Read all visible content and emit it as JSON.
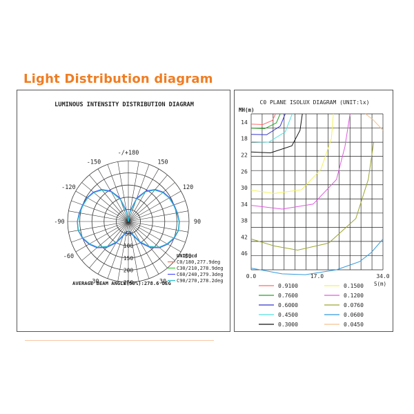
{
  "page": {
    "heading": "Light Distribution diagram",
    "accent_color": "#f07d22"
  },
  "chart_data": [
    {
      "type": "polar",
      "title": "LUMINOUS INTENSITY DISTRIBUTION DIAGRAM",
      "unit_label": "UNIT:cd",
      "angle_labels": [
        "-/+180",
        "150",
        "120",
        "90",
        "60",
        "30",
        "-30",
        "-60",
        "-90",
        "-120",
        "-150"
      ],
      "angle_label_values": [
        180,
        150,
        120,
        90,
        60,
        30,
        -30,
        -60,
        -90,
        -120,
        -150
      ],
      "radial_ticks": [
        50,
        100,
        150,
        200,
        250
      ],
      "radial_max": 250,
      "beam_angle_text": "AVERAGE BEAM ANGLE(50%):278.6 DEG",
      "series": [
        {
          "name": "C0/180,277.9deg",
          "color": "#ff6a4d",
          "angles": [
            0,
            10,
            20,
            30,
            40,
            50,
            60,
            70,
            80,
            90,
            100,
            110,
            120,
            130,
            140,
            150,
            160,
            170,
            180
          ],
          "values": [
            40,
            43,
            60,
            98,
            136,
            166,
            185,
            200,
            210,
            210,
            204,
            199,
            195,
            186,
            170,
            142,
            100,
            40,
            0
          ]
        },
        {
          "name": "C30/210,278.9deg",
          "color": "#33cc33",
          "angles": [
            0,
            10,
            20,
            30,
            40,
            50,
            60,
            70,
            80,
            90,
            100,
            110,
            120,
            130,
            140,
            150,
            160,
            170,
            180
          ],
          "values": [
            40,
            44,
            62,
            100,
            138,
            167,
            186,
            200,
            209,
            210,
            205,
            200,
            196,
            187,
            171,
            143,
            102,
            42,
            0
          ]
        },
        {
          "name": "C60/240,279.3deg",
          "color": "#4d4dff",
          "angles": [
            0,
            10,
            20,
            30,
            40,
            50,
            60,
            70,
            80,
            90,
            100,
            110,
            120,
            130,
            140,
            150,
            160,
            170,
            180
          ],
          "values": [
            40,
            45,
            64,
            102,
            140,
            168,
            187,
            201,
            210,
            210,
            205,
            200,
            196,
            188,
            172,
            145,
            104,
            44,
            0
          ]
        },
        {
          "name": "C90/270,278.2deg",
          "color": "#22bbcc",
          "angles": [
            0,
            10,
            20,
            30,
            40,
            50,
            60,
            70,
            80,
            90,
            100,
            110,
            120,
            130,
            140,
            150,
            160,
            170,
            180
          ],
          "values": [
            40,
            42,
            58,
            96,
            134,
            165,
            184,
            199,
            209,
            209,
            203,
            198,
            194,
            185,
            169,
            141,
            98,
            38,
            0
          ]
        }
      ]
    },
    {
      "type": "contour",
      "title": "C0 PLANE ISOLUX DIAGRAM (UNIT:lx)",
      "y_axis_label": "MH(m)",
      "x_axis_label": "S(m)",
      "y_ticks": [
        14,
        18,
        22,
        26,
        30,
        34,
        38,
        42,
        46
      ],
      "x_ticks": [
        "0.0",
        "17.0",
        "34.0"
      ],
      "xlim": [
        0,
        34
      ],
      "ylim": [
        12,
        50
      ],
      "legend": [
        {
          "value": "0.9100",
          "color": "#ff6a6a"
        },
        {
          "value": "0.1500",
          "color": "#f2f25a"
        },
        {
          "value": "0.7600",
          "color": "#2aa12a"
        },
        {
          "value": "0.1200",
          "color": "#e05ae0"
        },
        {
          "value": "0.6000",
          "color": "#3333cc"
        },
        {
          "value": "0.0760",
          "color": "#9aa630"
        },
        {
          "value": "0.4500",
          "color": "#4fe0e0"
        },
        {
          "value": "0.0600",
          "color": "#3399dd"
        },
        {
          "value": "0.3000",
          "color": "#111111"
        },
        {
          "value": "0.0450",
          "color": "#f5c090"
        }
      ],
      "contours": [
        {
          "value": "0.9100",
          "color": "#ff6a6a",
          "x": [
            0,
            3,
            5.5,
            6.3
          ],
          "y": [
            14.5,
            14.6,
            13.6,
            12
          ]
        },
        {
          "value": "0.7600",
          "color": "#2aa12a",
          "x": [
            0,
            3.5,
            6.5,
            7.5
          ],
          "y": [
            15.5,
            15.6,
            14.2,
            12
          ]
        },
        {
          "value": "0.6000",
          "color": "#3333cc",
          "x": [
            0,
            4,
            7.5,
            8.8
          ],
          "y": [
            17,
            17.1,
            15,
            12
          ]
        },
        {
          "value": "0.4500",
          "color": "#4fe0e0",
          "x": [
            0,
            4.5,
            8.8,
            10.6
          ],
          "y": [
            18.8,
            18.9,
            16.4,
            12
          ]
        },
        {
          "value": "0.3000",
          "color": "#111111",
          "x": [
            0,
            5,
            10.5,
            12.6,
            13.2
          ],
          "y": [
            21.3,
            21.5,
            19.8,
            16,
            12
          ]
        },
        {
          "value": "0.1500",
          "color": "#f2f25a",
          "x": [
            0,
            6,
            13,
            18,
            20.7,
            21.2
          ],
          "y": [
            30.6,
            31.4,
            30.5,
            25.5,
            18,
            12
          ]
        },
        {
          "value": "0.1200",
          "color": "#e05ae0",
          "x": [
            0,
            8,
            16,
            22,
            24.2,
            25.5
          ],
          "y": [
            34.3,
            35.2,
            34,
            28,
            20,
            12
          ]
        },
        {
          "value": "0.0760",
          "color": "#9aa630",
          "x": [
            0,
            6,
            12,
            20,
            27,
            30.2,
            31.6
          ],
          "y": [
            42.5,
            44.2,
            45.2,
            43.5,
            37.5,
            28,
            19
          ]
        },
        {
          "value": "0.0600",
          "color": "#3399dd",
          "x": [
            0,
            8,
            14,
            22,
            28,
            31,
            34
          ],
          "y": [
            49.6,
            51,
            51.2,
            50,
            48,
            45.8,
            42.5
          ]
        },
        {
          "value": "0.0450",
          "color": "#f5c090",
          "x": [
            29.5,
            31.5,
            33.2,
            34
          ],
          "y": [
            12,
            13.5,
            15.2,
            16
          ]
        }
      ]
    }
  ]
}
